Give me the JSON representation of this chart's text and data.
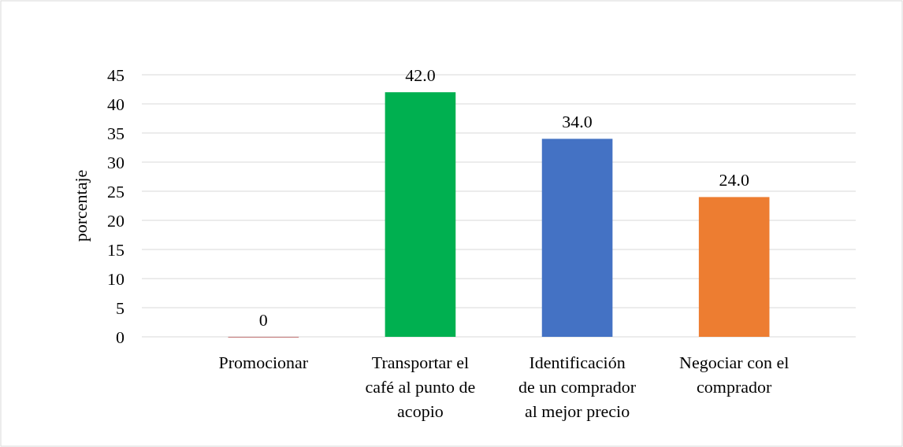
{
  "chart_data": {
    "type": "bar",
    "ylabel": "porcentaje",
    "categories": [
      "Promocionar",
      "Transportar el café al punto de acopio",
      "Identificación de un comprador al mejor precio",
      "Negociar con el comprador"
    ],
    "values": [
      0,
      42,
      34,
      24
    ],
    "colors": [
      "#9b0000",
      "#00b050",
      "#4472c4",
      "#ed7d31"
    ],
    "value_labels": [
      "0",
      "42.0",
      "34.0",
      "24.0"
    ],
    "ylim": [
      0,
      45
    ],
    "yticks": [
      0,
      5,
      10,
      15,
      20,
      25,
      30,
      35,
      40,
      45
    ],
    "grid": "y"
  }
}
